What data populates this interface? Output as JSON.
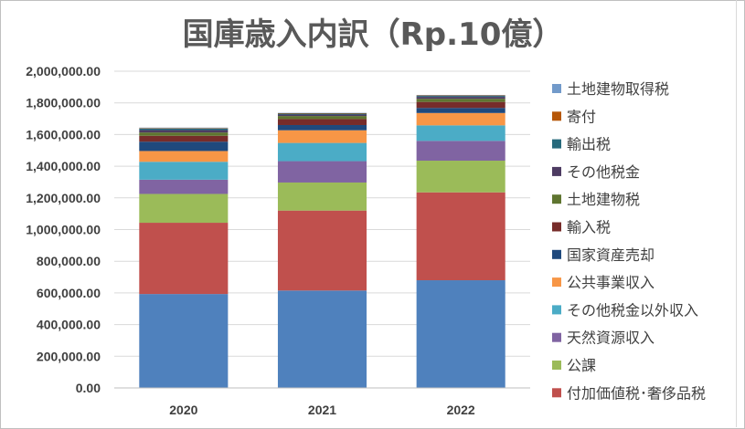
{
  "chart_data": {
    "type": "bar",
    "stacked": true,
    "title": "国庫歳入内訳（Rp.10億）",
    "xlabel": "",
    "ylabel": "",
    "ylim": [
      0,
      2000000
    ],
    "y_ticks": [
      "0.00",
      "200,000.00",
      "400,000.00",
      "600,000.00",
      "800,000.00",
      "1,000,000.00",
      "1,200,000.00",
      "1,400,000.00",
      "1,600,000.00",
      "1,800,000.00",
      "2,000,000.00"
    ],
    "grid": true,
    "legend_position": "right",
    "categories": [
      "2020",
      "2021",
      "2022"
    ],
    "series": [
      {
        "name": "",
        "color": "#4f81bd",
        "values": [
          593000,
          615000,
          680000
        ]
      },
      {
        "name": "付加価値税･奢侈品税",
        "color": "#c0504d",
        "values": [
          450000,
          505000,
          555000
        ]
      },
      {
        "name": "公課",
        "color": "#9bbb59",
        "values": [
          182000,
          177000,
          200000
        ]
      },
      {
        "name": "天然資源収入",
        "color": "#8064a2",
        "values": [
          90000,
          135000,
          125000
        ]
      },
      {
        "name": "その他税金以外収入",
        "color": "#4bacc6",
        "values": [
          113000,
          115000,
          98000
        ]
      },
      {
        "name": "公共事業収入",
        "color": "#f79646",
        "values": [
          68000,
          80000,
          78000
        ]
      },
      {
        "name": "国家資産売却",
        "color": "#1f497d",
        "values": [
          59000,
          33000,
          32000
        ]
      },
      {
        "name": "輸入税",
        "color": "#772c2a",
        "values": [
          37000,
          38000,
          38000
        ]
      },
      {
        "name": "土地建物税",
        "color": "#5f7530",
        "values": [
          21000,
          19000,
          20000
        ]
      },
      {
        "name": "その他税金",
        "color": "#4d3b62",
        "values": [
          15000,
          9000,
          12000
        ]
      },
      {
        "name": "輸出税",
        "color": "#276a7c",
        "values": [
          10000,
          6000,
          6000
        ]
      },
      {
        "name": "寄付",
        "color": "#b65708",
        "values": [
          3000,
          3000,
          3000
        ]
      },
      {
        "name": "土地建物取得税",
        "color": "#729aca",
        "values": [
          3000,
          2000,
          3000
        ]
      }
    ]
  }
}
